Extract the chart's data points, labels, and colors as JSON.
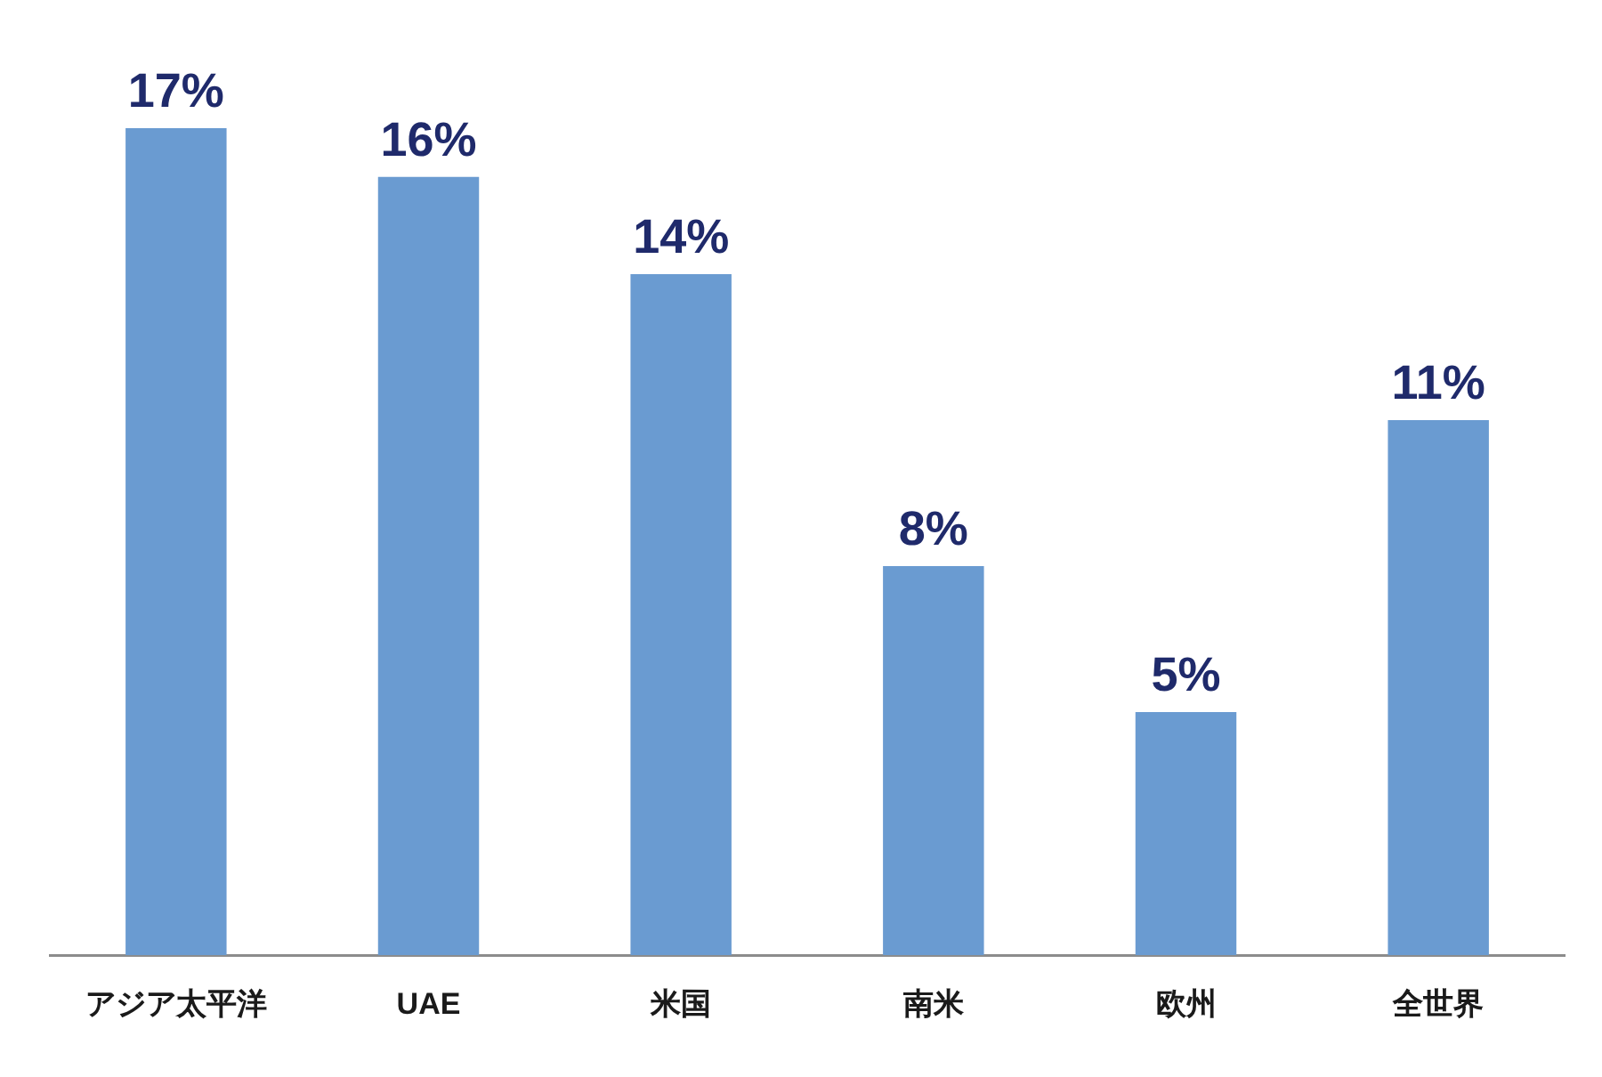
{
  "chart_data": {
    "type": "bar",
    "relative": false,
    "categories": [
      "アジア太平洋",
      "UAE",
      "米国",
      "南米",
      "欧州",
      "全世界"
    ],
    "values": [
      17,
      16,
      14,
      8,
      5,
      11
    ],
    "value_labels": [
      "17%",
      "16%",
      "14%",
      "8%",
      "5%",
      "11%"
    ],
    "color": "#6a9bd1",
    "legend": false,
    "grid": false
  }
}
